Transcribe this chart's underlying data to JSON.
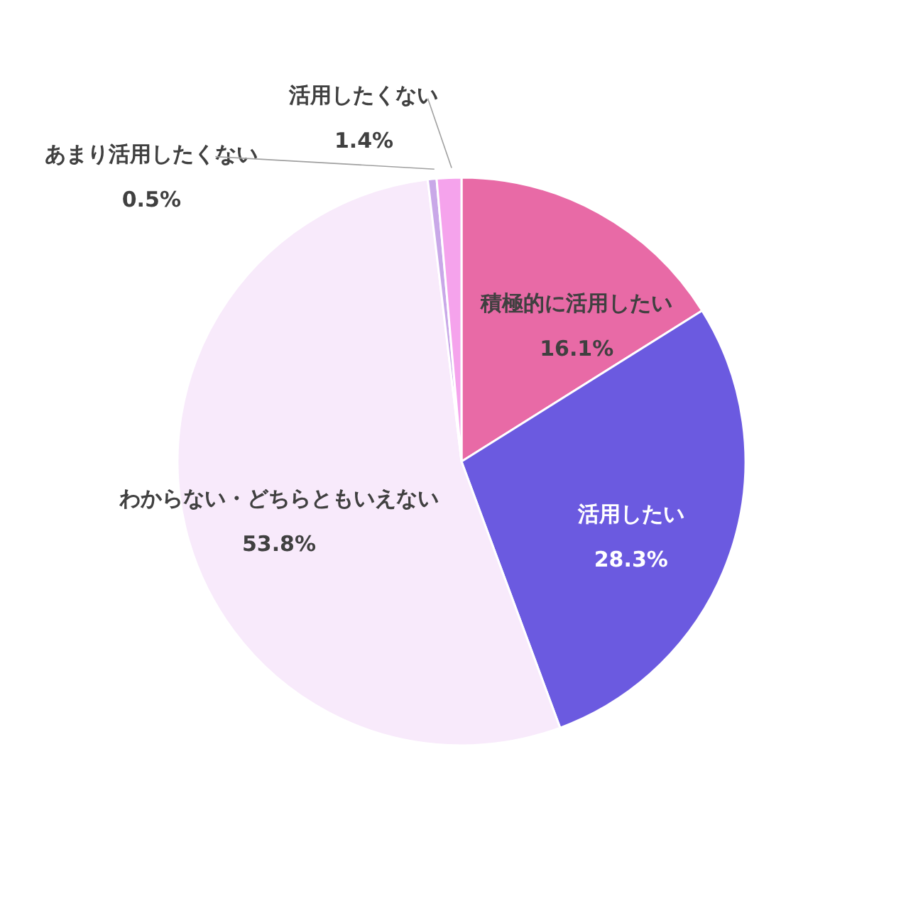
{
  "chart_data": {
    "type": "pie",
    "categories": [
      "積極的に活用したい",
      "活用したい",
      "わからない・どちらともいえない",
      "あまり活用したくない",
      "活用したくない"
    ],
    "values": [
      16.1,
      28.3,
      53.8,
      0.5,
      1.4
    ],
    "colors": [
      "#e86aa6",
      "#6b5ae0",
      "#f8eafb",
      "#c9a8e8",
      "#f5a3ec"
    ],
    "value_labels": [
      "16.1%",
      "28.3%",
      "53.8%",
      "0.5%",
      "1.4%"
    ]
  }
}
